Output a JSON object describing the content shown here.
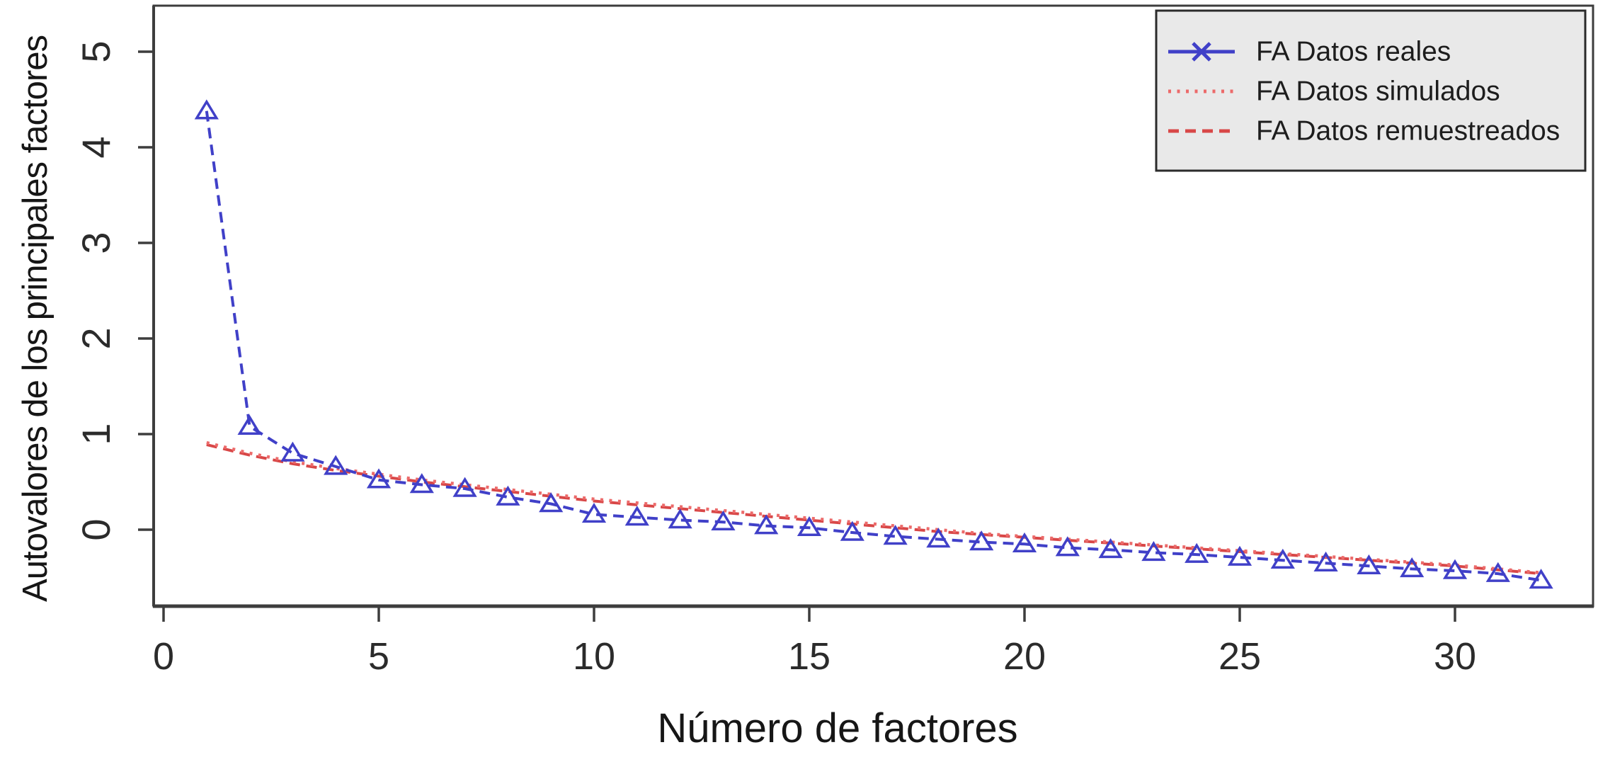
{
  "figure": {
    "description": "Parallel analysis scree plot",
    "background": "#ffffff"
  },
  "chart_data": {
    "type": "line",
    "title": "",
    "xlabel": "Número de factores",
    "ylabel": "Autovalores de los principales factores",
    "x": [
      1,
      2,
      3,
      4,
      5,
      6,
      7,
      8,
      9,
      10,
      11,
      12,
      13,
      14,
      15,
      16,
      17,
      18,
      19,
      20,
      21,
      22,
      23,
      24,
      25,
      26,
      27,
      28,
      29,
      30,
      31,
      32
    ],
    "x_ticks": [
      0,
      5,
      10,
      15,
      20,
      25,
      30
    ],
    "y_ticks": [
      0,
      1,
      2,
      3,
      4,
      5
    ],
    "xlim": [
      -0.23,
      33.2
    ],
    "ylim": [
      -0.8,
      5.48
    ],
    "grid": false,
    "legend_position": "top-right",
    "axis_color": "#3d3d3d",
    "text_color": "#1d1d1d",
    "legend_bg": "#e9e9e9",
    "legend_border": "#2b2b2b",
    "series": [
      {
        "name": "FA Datos reales",
        "color": "#4040c8",
        "line_style": "dashed",
        "marker": "triangle",
        "legend_line": "solid",
        "legend_marker": "x",
        "values": [
          4.38,
          1.08,
          0.8,
          0.66,
          0.52,
          0.47,
          0.43,
          0.34,
          0.27,
          0.16,
          0.13,
          0.1,
          0.08,
          0.04,
          0.02,
          -0.03,
          -0.07,
          -0.1,
          -0.13,
          -0.15,
          -0.19,
          -0.21,
          -0.24,
          -0.26,
          -0.29,
          -0.32,
          -0.35,
          -0.38,
          -0.41,
          -0.43,
          -0.46,
          -0.53
        ]
      },
      {
        "name": "FA Datos simulados",
        "color": "#ec6a6a",
        "line_style": "dotted",
        "marker": "none",
        "legend_line": "dotted",
        "legend_marker": "none",
        "values": [
          0.91,
          0.8,
          0.71,
          0.64,
          0.58,
          0.52,
          0.47,
          0.42,
          0.37,
          0.32,
          0.28,
          0.24,
          0.2,
          0.16,
          0.12,
          0.08,
          0.04,
          0.0,
          -0.04,
          -0.07,
          -0.1,
          -0.13,
          -0.16,
          -0.19,
          -0.22,
          -0.25,
          -0.28,
          -0.31,
          -0.34,
          -0.37,
          -0.41,
          -0.45
        ]
      },
      {
        "name": "FA Datos remuestreados",
        "color": "#d84747",
        "line_style": "dashed",
        "marker": "none",
        "legend_line": "dashed",
        "legend_marker": "none",
        "values": [
          0.89,
          0.78,
          0.69,
          0.62,
          0.56,
          0.5,
          0.45,
          0.4,
          0.35,
          0.3,
          0.26,
          0.22,
          0.18,
          0.14,
          0.1,
          0.06,
          0.02,
          -0.02,
          -0.05,
          -0.08,
          -0.11,
          -0.14,
          -0.17,
          -0.2,
          -0.23,
          -0.26,
          -0.29,
          -0.32,
          -0.35,
          -0.38,
          -0.42,
          -0.46
        ]
      }
    ]
  }
}
